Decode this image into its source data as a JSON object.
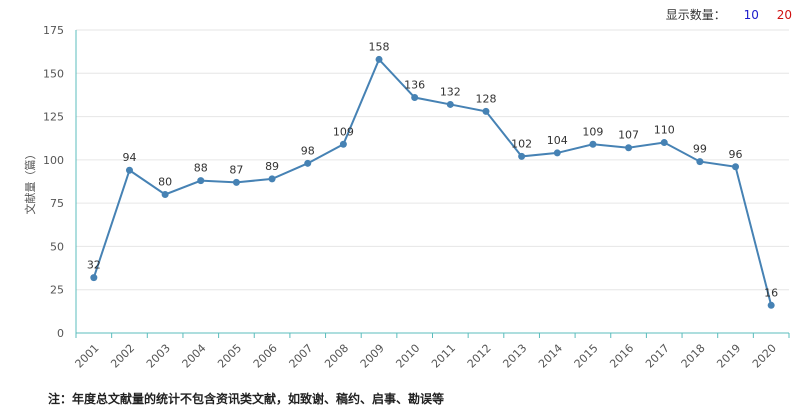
{
  "controls": {
    "display_label": "显示数量：",
    "option_10": "10",
    "option_20": "20",
    "option_10_color": "#1a1acc",
    "option_20_color": "#d01010"
  },
  "footnote": "注：年度总文献量的统计不包含资讯类文献，如致谢、稿约、启事、勘误等",
  "chart_data": {
    "type": "line",
    "title": "",
    "xlabel": "",
    "ylabel": "文献量（篇）",
    "ylim": [
      0,
      175
    ],
    "yticks": [
      0,
      25,
      50,
      75,
      100,
      125,
      150,
      175
    ],
    "grid": true,
    "categories": [
      "2001",
      "2002",
      "2003",
      "2004",
      "2005",
      "2006",
      "2007",
      "2008",
      "2009",
      "2010",
      "2011",
      "2012",
      "2013",
      "2014",
      "2015",
      "2016",
      "2017",
      "2018",
      "2019",
      "2020"
    ],
    "series": [
      {
        "values": [
          32,
          94,
          80,
          88,
          87,
          89,
          98,
          109,
          158,
          136,
          132,
          128,
          102,
          104,
          109,
          107,
          110,
          99,
          96,
          16
        ],
        "color": "#4682b4"
      }
    ],
    "colors": {
      "axis": "#5bbcbc",
      "grid": "#e6e6e6",
      "text": "#555555"
    }
  }
}
